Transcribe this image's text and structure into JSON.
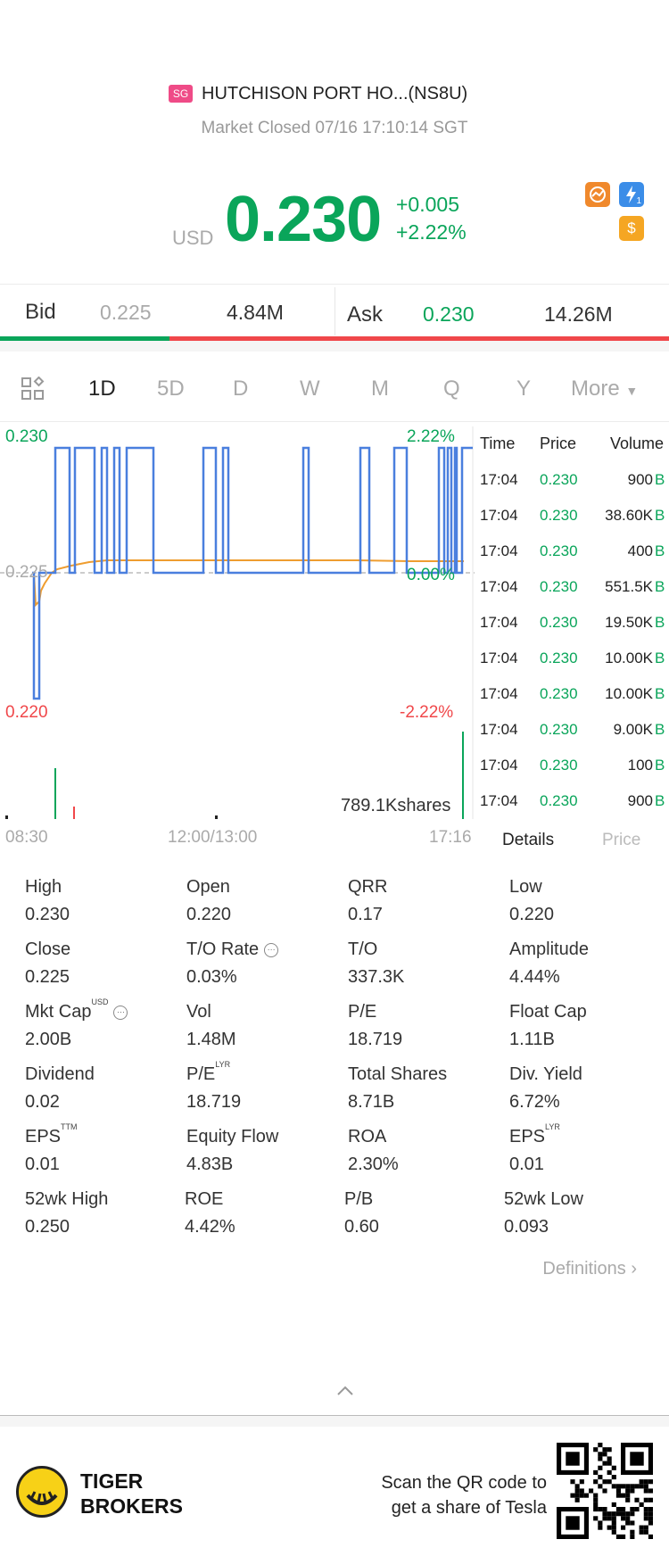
{
  "header": {
    "market_badge": "SG",
    "stock_name": "HUTCHISON PORT HO...(NS8U)",
    "market_status": "Market Closed 07/16 17:10:14 SGT",
    "currency": "USD",
    "price": "0.230",
    "change": "+0.005",
    "change_pct": "+2.22%",
    "icon_dollar": "$",
    "icon_flash_sub": "1"
  },
  "bid_ask": {
    "bid_label": "Bid",
    "bid_price": "0.225",
    "bid_size": "4.84M",
    "ask_label": "Ask",
    "ask_price": "0.230",
    "ask_size": "14.26M",
    "bid_ratio": 0.253
  },
  "tabs": {
    "items": [
      "1D",
      "5D",
      "D",
      "W",
      "M",
      "Q",
      "Y"
    ],
    "more": "More",
    "active": "1D"
  },
  "chart": {
    "y_high": "0.230",
    "y_mid": "0.225",
    "y_low": "0.220",
    "pct_high": "2.22%",
    "pct_mid": "0.00%",
    "pct_low": "-2.22%",
    "volume_label": "789.1Kshares",
    "x_start": "08:30",
    "x_mid": "12:00/13:00",
    "x_end": "17:16"
  },
  "colors": {
    "up": "#0aa55a",
    "down": "#f0474a",
    "price_line": "#4a7fde",
    "avg_line": "#ef9d2f"
  },
  "trades": {
    "headers": {
      "time": "Time",
      "price": "Price",
      "volume": "Volume"
    },
    "rows": [
      {
        "time": "17:04",
        "price": "0.230",
        "volume": "900",
        "side": "B"
      },
      {
        "time": "17:04",
        "price": "0.230",
        "volume": "38.60K",
        "side": "B"
      },
      {
        "time": "17:04",
        "price": "0.230",
        "volume": "400",
        "side": "B"
      },
      {
        "time": "17:04",
        "price": "0.230",
        "volume": "551.5K",
        "side": "B"
      },
      {
        "time": "17:04",
        "price": "0.230",
        "volume": "19.50K",
        "side": "B"
      },
      {
        "time": "17:04",
        "price": "0.230",
        "volume": "10.00K",
        "side": "B"
      },
      {
        "time": "17:04",
        "price": "0.230",
        "volume": "10.00K",
        "side": "B"
      },
      {
        "time": "17:04",
        "price": "0.230",
        "volume": "9.00K",
        "side": "B"
      },
      {
        "time": "17:04",
        "price": "0.230",
        "volume": "100",
        "side": "B"
      },
      {
        "time": "17:04",
        "price": "0.230",
        "volume": "900",
        "side": "B"
      }
    ],
    "tab_details": "Details",
    "tab_price": "Price"
  },
  "stats": [
    [
      {
        "label": "High",
        "value": "0.230"
      },
      {
        "label": "Open",
        "value": "0.220"
      },
      {
        "label": "QRR",
        "value": "0.17"
      },
      {
        "label": "Low",
        "value": "0.220"
      }
    ],
    [
      {
        "label": "Close",
        "value": "0.225"
      },
      {
        "label": "T/O Rate",
        "value": "0.03%"
      },
      {
        "label": "T/O",
        "value": "337.3K"
      },
      {
        "label": "Amplitude",
        "value": "4.44%"
      }
    ],
    [
      {
        "label": "Mkt Cap",
        "value": "2.00B",
        "sup": "USD"
      },
      {
        "label": "Vol",
        "value": "1.48M"
      },
      {
        "label": "P/E",
        "value": "18.719"
      },
      {
        "label": "Float Cap",
        "value": "1.11B"
      }
    ],
    [
      {
        "label": "Dividend",
        "value": "0.02"
      },
      {
        "label": "P/E",
        "value": "18.719",
        "sup": "LYR"
      },
      {
        "label": "Total Shares",
        "value": "8.71B"
      },
      {
        "label": "Div. Yield",
        "value": "6.72%"
      }
    ],
    [
      {
        "label": "EPS",
        "value": "0.01",
        "sup": "TTM"
      },
      {
        "label": "Equity Flow",
        "value": "4.83B"
      },
      {
        "label": "ROA",
        "value": "2.30%"
      },
      {
        "label": "EPS",
        "value": "0.01",
        "sup": "LYR"
      }
    ],
    [
      {
        "label": "52wk High",
        "value": "0.250"
      },
      {
        "label": "ROE",
        "value": "4.42%"
      },
      {
        "label": "P/B",
        "value": "0.60"
      },
      {
        "label": "52wk Low",
        "value": "0.093"
      }
    ]
  ],
  "definitions_label": "Definitions",
  "footer": {
    "brand_line1": "TIGER",
    "brand_line2": "BROKERS",
    "promo_line1": "Scan the QR code to",
    "promo_line2": "get a share of Tesla"
  }
}
